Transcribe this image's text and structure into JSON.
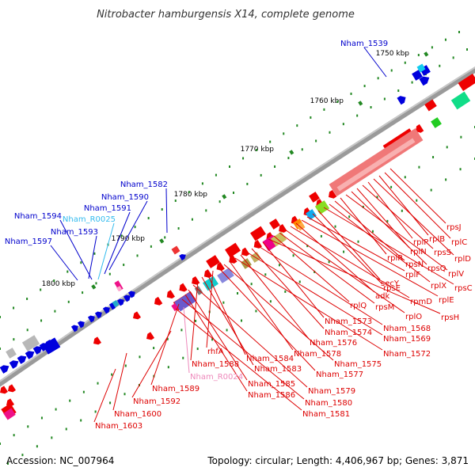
{
  "title": "Nitrobacter hamburgensis X14, complete genome",
  "footer": {
    "accession": "Accession: NC_007964",
    "topology": "Topology: circular; Length: 4,406,967 bp; Genes: 3,871"
  },
  "ticks": [
    "1750 kbp",
    "1760 kbp",
    "1770 kbp",
    "1780 kbp",
    "1790 kbp",
    "1800 kbp"
  ],
  "colors": {
    "forward_label": "#0000cc",
    "rna_label_cyan": "#33bbee",
    "reverse_label": "#dd0000",
    "rna_label_pink": "#ee88bb",
    "backbone": "#808080",
    "tick_mark": "#228822"
  },
  "forward_labels": [
    "Nham_1539",
    "Nham_1582",
    "Nham_1590",
    "Nham_1591",
    "Nham_R0025",
    "Nham_1594",
    "Nham_1593",
    "Nham_1597"
  ],
  "reverse_labels": [
    "rpsJ",
    "rplC",
    "rplB",
    "rplD",
    "rplP",
    "rpsS",
    "rplN",
    "rpsQ",
    "rplV",
    "rplR",
    "rpsN",
    "rplX",
    "rpsC",
    "secY",
    "rpsE",
    "rplF",
    "rplE",
    "adk",
    "rpmD",
    "rplO",
    "rpsM",
    "rplQ",
    "rpsH",
    "Nham_1573",
    "Nham_1568",
    "Nham_1574",
    "Nham_1569",
    "Nham_1576",
    "Nham_1572",
    "Nham_1578",
    "Nham_1575",
    "Nham_1577",
    "rhfA",
    "Nham_1584",
    "Nham_1583",
    "Nham_1588",
    "Nham_R0024",
    "Nham_1579",
    "Nham_1585",
    "Nham_1586",
    "Nham_1580",
    "Nham_1589",
    "Nham_1581",
    "Nham_1592",
    "Nham_1600",
    "Nham_1603"
  ]
}
